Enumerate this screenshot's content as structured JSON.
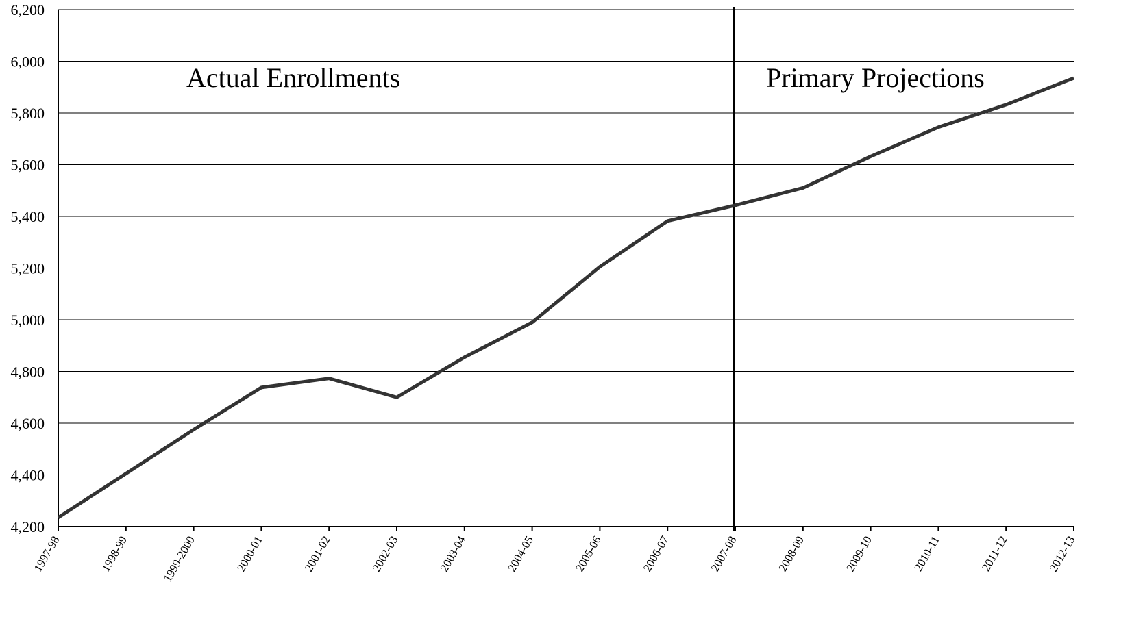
{
  "chart_data": {
    "type": "line",
    "title": "",
    "xlabel": "",
    "ylabel": "",
    "categories": [
      "1997-98",
      "1998-99",
      "1999-2000",
      "2000-01",
      "2001-02",
      "2002-03",
      "2003-04",
      "2004-05",
      "2005-06",
      "2006-07",
      "2007-08",
      "2008-09",
      "2009-10",
      "2010-11",
      "2011-12",
      "2012-13"
    ],
    "series": [
      {
        "values": [
          4235,
          4405,
          4575,
          4738,
          4773,
          4700,
          4855,
          4990,
          5205,
          5382,
          5443,
          5510,
          5632,
          5745,
          5832,
          5935
        ]
      }
    ],
    "ylim": [
      4200,
      6200
    ],
    "yticks": [
      4200,
      4400,
      4600,
      4800,
      5000,
      5200,
      5400,
      5600,
      5800,
      6000,
      6200
    ],
    "ytick_labels": [
      "4,200",
      "4,400",
      "4,600",
      "4,800",
      "5,000",
      "5,200",
      "5,400",
      "5,600",
      "5,800",
      "6,000",
      "6,200"
    ],
    "grid": true,
    "legend": "none",
    "divider_category": "2007-08",
    "annotations": [
      {
        "text": "Actual Enrollments",
        "region": "left"
      },
      {
        "text": "Primary Projections",
        "region": "right"
      }
    ],
    "colors": {
      "line": "#333333",
      "grid": "#000000",
      "background": "#ffffff"
    }
  }
}
